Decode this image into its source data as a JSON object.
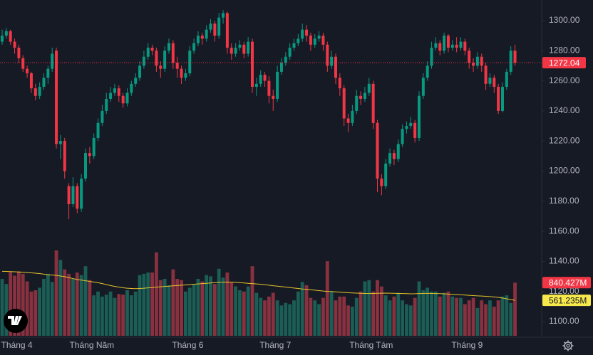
{
  "chart_data": {
    "type": "candlestick",
    "categories": [
      null,
      null,
      null,
      "Tháng 4",
      null,
      null,
      null,
      null,
      null,
      null,
      null,
      null,
      null,
      null,
      null,
      null,
      null,
      null,
      null,
      null,
      null,
      "Tháng Năm",
      null,
      null,
      null,
      null,
      null,
      null,
      null,
      null,
      null,
      null,
      null,
      null,
      null,
      null,
      null,
      null,
      null,
      null,
      null,
      null,
      null,
      null,
      "Tháng 6",
      null,
      null,
      null,
      null,
      null,
      null,
      null,
      null,
      null,
      null,
      null,
      null,
      null,
      null,
      null,
      null,
      null,
      null,
      null,
      null,
      "Tháng 7",
      null,
      null,
      null,
      null,
      null,
      null,
      null,
      null,
      null,
      null,
      null,
      null,
      null,
      null,
      null,
      null,
      null,
      null,
      null,
      null,
      null,
      null,
      "Tháng Tám",
      null,
      null,
      null,
      null,
      null,
      null,
      null,
      null,
      null,
      null,
      null,
      null,
      null,
      null,
      null,
      null,
      null,
      null,
      null,
      null,
      null,
      null,
      "Tháng 9",
      null,
      null,
      null,
      null,
      null,
      null,
      null,
      null,
      null,
      null,
      null,
      null
    ],
    "ohlc": [
      [
        1286,
        1294,
        1284,
        1290
      ],
      [
        1290,
        1295,
        1288,
        1293
      ],
      [
        1293,
        1294,
        1284,
        1286
      ],
      [
        1286,
        1288,
        1278,
        1282
      ],
      [
        1282,
        1284,
        1272,
        1275
      ],
      [
        1275,
        1277,
        1266,
        1268
      ],
      [
        1268,
        1270,
        1262,
        1265
      ],
      [
        1265,
        1266,
        1252,
        1255
      ],
      [
        1255,
        1258,
        1247,
        1250
      ],
      [
        1250,
        1259,
        1248,
        1256
      ],
      [
        1256,
        1265,
        1254,
        1262
      ],
      [
        1262,
        1270,
        1258,
        1268
      ],
      [
        1268,
        1282,
        1266,
        1278
      ],
      [
        1280,
        1282,
        1215,
        1218
      ],
      [
        1218,
        1224,
        1208,
        1220
      ],
      [
        1220,
        1222,
        1195,
        1200
      ],
      [
        1190,
        1192,
        1168,
        1178
      ],
      [
        1178,
        1196,
        1176,
        1190
      ],
      [
        1190,
        1192,
        1172,
        1175
      ],
      [
        1175,
        1198,
        1173,
        1195
      ],
      [
        1195,
        1215,
        1193,
        1212
      ],
      [
        1212,
        1216,
        1205,
        1210
      ],
      [
        1210,
        1225,
        1208,
        1222
      ],
      [
        1222,
        1235,
        1220,
        1232
      ],
      [
        1232,
        1244,
        1230,
        1240
      ],
      [
        1240,
        1252,
        1238,
        1248
      ],
      [
        1248,
        1256,
        1246,
        1252
      ],
      [
        1252,
        1258,
        1250,
        1255
      ],
      [
        1255,
        1257,
        1246,
        1250
      ],
      [
        1250,
        1252,
        1242,
        1245
      ],
      [
        1245,
        1255,
        1243,
        1252
      ],
      [
        1252,
        1260,
        1250,
        1258
      ],
      [
        1258,
        1265,
        1256,
        1262
      ],
      [
        1262,
        1273,
        1260,
        1270
      ],
      [
        1270,
        1280,
        1268,
        1276
      ],
      [
        1276,
        1285,
        1274,
        1282
      ],
      [
        1282,
        1284,
        1277,
        1280
      ],
      [
        1280,
        1282,
        1266,
        1270
      ],
      [
        1270,
        1273,
        1262,
        1268
      ],
      [
        1268,
        1283,
        1266,
        1280
      ],
      [
        1280,
        1288,
        1278,
        1285
      ],
      [
        1285,
        1287,
        1268,
        1272
      ],
      [
        1272,
        1276,
        1262,
        1268
      ],
      [
        1268,
        1270,
        1258,
        1262
      ],
      [
        1262,
        1268,
        1260,
        1265
      ],
      [
        1265,
        1283,
        1263,
        1280
      ],
      [
        1280,
        1288,
        1278,
        1285
      ],
      [
        1285,
        1293,
        1283,
        1290
      ],
      [
        1290,
        1292,
        1284,
        1288
      ],
      [
        1288,
        1297,
        1286,
        1294
      ],
      [
        1294,
        1301,
        1292,
        1298
      ],
      [
        1298,
        1300,
        1286,
        1290
      ],
      [
        1290,
        1305,
        1288,
        1302
      ],
      [
        1302,
        1307,
        1298,
        1305
      ],
      [
        1305,
        1306,
        1278,
        1282
      ],
      [
        1282,
        1285,
        1274,
        1278
      ],
      [
        1278,
        1285,
        1276,
        1282
      ],
      [
        1282,
        1287,
        1280,
        1284
      ],
      [
        1284,
        1286,
        1275,
        1278
      ],
      [
        1278,
        1289,
        1276,
        1286
      ],
      [
        1286,
        1288,
        1252,
        1256
      ],
      [
        1256,
        1262,
        1250,
        1258
      ],
      [
        1258,
        1267,
        1256,
        1264
      ],
      [
        1264,
        1266,
        1256,
        1260
      ],
      [
        1260,
        1263,
        1245,
        1250
      ],
      [
        1250,
        1254,
        1240,
        1248
      ],
      [
        1248,
        1270,
        1246,
        1266
      ],
      [
        1266,
        1275,
        1264,
        1272
      ],
      [
        1272,
        1279,
        1270,
        1276
      ],
      [
        1276,
        1285,
        1274,
        1282
      ],
      [
        1282,
        1288,
        1280,
        1285
      ],
      [
        1285,
        1291,
        1283,
        1288
      ],
      [
        1288,
        1298,
        1286,
        1294
      ],
      [
        1294,
        1297,
        1286,
        1290
      ],
      [
        1290,
        1292,
        1280,
        1284
      ],
      [
        1284,
        1291,
        1282,
        1288
      ],
      [
        1288,
        1293,
        1286,
        1290
      ],
      [
        1290,
        1292,
        1280,
        1284
      ],
      [
        1284,
        1286,
        1266,
        1270
      ],
      [
        1270,
        1280,
        1268,
        1276
      ],
      [
        1276,
        1278,
        1258,
        1262
      ],
      [
        1262,
        1265,
        1250,
        1255
      ],
      [
        1255,
        1257,
        1230,
        1235
      ],
      [
        1235,
        1238,
        1226,
        1232
      ],
      [
        1232,
        1244,
        1230,
        1240
      ],
      [
        1240,
        1254,
        1238,
        1250
      ],
      [
        1250,
        1253,
        1244,
        1248
      ],
      [
        1248,
        1256,
        1246,
        1252
      ],
      [
        1252,
        1262,
        1250,
        1258
      ],
      [
        1258,
        1260,
        1228,
        1232
      ],
      [
        1232,
        1234,
        1186,
        1195
      ],
      [
        1195,
        1198,
        1184,
        1190
      ],
      [
        1190,
        1208,
        1188,
        1205
      ],
      [
        1205,
        1215,
        1203,
        1212
      ],
      [
        1212,
        1214,
        1204,
        1208
      ],
      [
        1208,
        1221,
        1206,
        1218
      ],
      [
        1218,
        1231,
        1216,
        1228
      ],
      [
        1228,
        1233,
        1225,
        1230
      ],
      [
        1230,
        1236,
        1228,
        1232
      ],
      [
        1232,
        1234,
        1219,
        1222
      ],
      [
        1222,
        1253,
        1220,
        1250
      ],
      [
        1250,
        1265,
        1248,
        1262
      ],
      [
        1262,
        1273,
        1260,
        1270
      ],
      [
        1270,
        1286,
        1268,
        1282
      ],
      [
        1282,
        1289,
        1280,
        1285
      ],
      [
        1285,
        1287,
        1277,
        1280
      ],
      [
        1280,
        1292,
        1278,
        1290
      ],
      [
        1290,
        1291,
        1279,
        1282
      ],
      [
        1282,
        1287,
        1280,
        1284
      ],
      [
        1284,
        1289,
        1279,
        1282
      ],
      [
        1282,
        1289,
        1280,
        1286
      ],
      [
        1286,
        1288,
        1277,
        1280
      ],
      [
        1280,
        1282,
        1268,
        1272
      ],
      [
        1272,
        1275,
        1266,
        1270
      ],
      [
        1270,
        1279,
        1268,
        1276
      ],
      [
        1276,
        1278,
        1266,
        1270
      ],
      [
        1270,
        1272,
        1254,
        1258
      ],
      [
        1258,
        1265,
        1256,
        1262
      ],
      [
        1262,
        1264,
        1252,
        1256
      ],
      [
        1256,
        1258,
        1238,
        1240
      ],
      [
        1240,
        1259,
        1239,
        1256
      ],
      [
        1256,
        1268,
        1254,
        1266
      ],
      [
        1266,
        1283,
        1264,
        1280
      ],
      [
        1280,
        1284,
        1270,
        1272.04
      ]
    ],
    "up_color": "#089981",
    "down_color": "#f23645",
    "ylim": [
      1089.6,
      1313.7
    ],
    "yticks": [
      {
        "value": 1100,
        "label": "1100.00"
      },
      {
        "value": 1120,
        "label": "1120.00"
      },
      {
        "value": 1140,
        "label": "1140.00"
      },
      {
        "value": 1160,
        "label": "1160.00"
      },
      {
        "value": 1180,
        "label": "1180.00"
      },
      {
        "value": 1200,
        "label": "1200.00"
      },
      {
        "value": 1220,
        "label": "1220.00"
      },
      {
        "value": 1240,
        "label": "1240.00"
      },
      {
        "value": 1260,
        "label": "1260.00"
      },
      {
        "value": 1280,
        "label": "1280.00"
      },
      {
        "value": 1300,
        "label": "1300.00"
      }
    ],
    "volume": {
      "up_color": "#1b5e55",
      "down_color": "#8a3140",
      "values": [
        900,
        820,
        1010,
        950,
        1020,
        980,
        860,
        700,
        720,
        760,
        900,
        980,
        850,
        1350,
        1200,
        1050,
        980,
        900,
        1000,
        960,
        1100,
        880,
        640,
        700,
        620,
        650,
        700,
        600,
        660,
        650,
        720,
        640,
        700,
        960,
        980,
        1000,
        1000,
        1320,
        880,
        900,
        800,
        1050,
        900,
        880,
        700,
        760,
        820,
        900,
        860,
        960,
        940,
        820,
        1060,
        920,
        1000,
        850,
        780,
        720,
        700,
        780,
        1100,
        680,
        600,
        560,
        620,
        680,
        560,
        480,
        520,
        500,
        560,
        700,
        850,
        800,
        600,
        560,
        500,
        600,
        1180,
        700,
        560,
        620,
        620,
        480,
        460,
        600,
        700,
        860,
        880,
        700,
        880,
        780,
        640,
        560,
        620,
        680,
        560,
        500,
        480,
        600,
        860,
        720,
        760,
        700,
        700,
        620,
        680,
        700,
        620,
        600,
        600,
        500,
        560,
        600,
        440,
        560,
        500,
        560,
        460,
        560,
        620,
        640,
        520,
        840.427
      ],
      "value_labels": [
        null,
        null,
        null,
        null,
        null,
        null,
        null,
        null,
        null,
        null,
        null,
        null,
        null,
        null,
        null,
        null,
        null,
        null,
        null,
        null,
        null,
        null,
        null,
        null,
        null,
        null,
        null,
        null,
        null,
        null,
        null,
        null,
        null,
        null,
        null,
        null,
        null,
        null,
        null,
        null,
        null,
        null,
        null,
        null,
        null,
        null,
        null,
        null,
        null,
        null,
        null,
        null,
        null,
        null,
        null,
        null,
        null,
        null,
        null,
        null,
        null,
        null,
        null,
        null,
        null,
        null,
        null,
        null,
        null,
        null,
        null,
        null,
        null,
        null,
        null,
        null,
        null,
        null,
        null,
        null,
        null,
        null,
        null,
        null,
        null,
        null,
        null,
        null,
        null,
        null,
        null,
        null,
        null,
        null,
        null,
        null,
        null,
        null,
        null,
        null,
        null,
        null,
        null,
        null,
        null,
        null,
        null,
        null,
        null,
        null,
        null,
        null,
        null,
        null,
        null,
        null,
        null,
        null,
        null,
        null,
        null,
        null,
        null,
        "840.427M"
      ]
    },
    "volume_ma": {
      "color": "#e6c229",
      "values": [
        1020,
        1018,
        1015,
        1012,
        1008,
        1005,
        1000,
        995,
        990,
        985,
        975,
        965,
        960,
        955,
        945,
        935,
        920,
        905,
        890,
        880,
        870,
        860,
        850,
        840,
        825,
        810,
        795,
        780,
        770,
        760,
        752,
        748,
        745,
        748,
        752,
        758,
        762,
        770,
        775,
        780,
        785,
        790,
        795,
        800,
        805,
        810,
        815,
        820,
        825,
        830,
        835,
        840,
        845,
        848,
        850,
        848,
        845,
        840,
        835,
        830,
        825,
        820,
        815,
        808,
        800,
        792,
        785,
        778,
        770,
        762,
        755,
        748,
        740,
        735,
        728,
        722,
        715,
        708,
        702,
        700,
        695,
        690,
        685,
        680,
        678,
        675,
        672,
        670,
        668,
        670,
        672,
        674,
        675,
        674,
        672,
        670,
        668,
        666,
        664,
        665,
        668,
        670,
        672,
        670,
        668,
        666,
        664,
        660,
        656,
        652,
        648,
        644,
        640,
        636,
        632,
        628,
        624,
        620,
        615,
        608,
        598,
        585,
        572,
        561.235
      ],
      "value_labels": [
        null,
        null,
        null,
        null,
        null,
        null,
        null,
        null,
        null,
        null,
        null,
        null,
        null,
        null,
        null,
        null,
        null,
        null,
        null,
        null,
        null,
        null,
        null,
        null,
        null,
        null,
        null,
        null,
        null,
        null,
        null,
        null,
        null,
        null,
        null,
        null,
        null,
        null,
        null,
        null,
        null,
        null,
        null,
        null,
        null,
        null,
        null,
        null,
        null,
        null,
        null,
        null,
        null,
        null,
        null,
        null,
        null,
        null,
        null,
        null,
        null,
        null,
        null,
        null,
        null,
        null,
        null,
        null,
        null,
        null,
        null,
        null,
        null,
        null,
        null,
        null,
        null,
        null,
        null,
        null,
        null,
        null,
        null,
        null,
        null,
        null,
        null,
        null,
        null,
        null,
        null,
        null,
        null,
        null,
        null,
        null,
        null,
        null,
        null,
        null,
        null,
        null,
        null,
        null,
        null,
        null,
        null,
        null,
        null,
        null,
        null,
        null,
        null,
        null,
        null,
        null,
        null,
        null,
        null,
        null,
        null,
        null,
        null,
        "561.235M"
      ]
    }
  }
}
